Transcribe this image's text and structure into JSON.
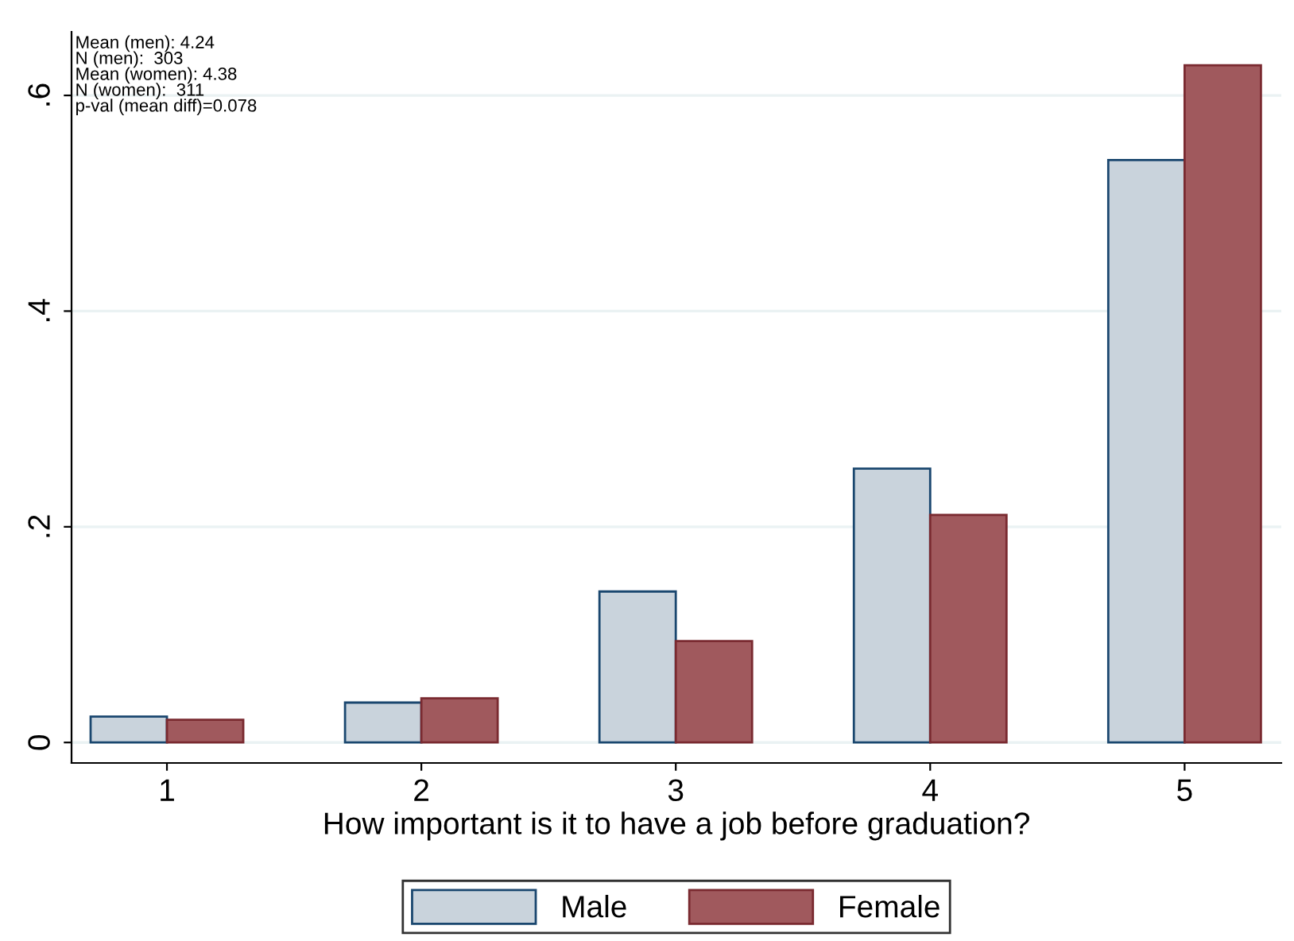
{
  "chart_data": {
    "type": "bar",
    "xlabel": "How important is it to have a job before graduation?",
    "categories": [
      "1",
      "2",
      "3",
      "4",
      "5"
    ],
    "series": [
      {
        "name": "Male",
        "color": "#c9d3dc",
        "values": [
          0.024,
          0.037,
          0.14,
          0.254,
          0.54
        ]
      },
      {
        "name": "Female",
        "color": "#a0595d",
        "values": [
          0.021,
          0.041,
          0.094,
          0.211,
          0.628
        ]
      }
    ],
    "ylim": [
      -0.019,
      0.659
    ],
    "yticks": [
      0,
      {
        "value": 0.2,
        "label": ".2"
      },
      {
        "value": 0.4,
        "label": ".4"
      },
      {
        "value": 0.6,
        "label": ".6"
      }
    ],
    "grid": "y",
    "legend": "bottom",
    "annotations": [
      "Mean (men): 4.24",
      "N (men):  303",
      "Mean (women): 4.38",
      "N (women):  311",
      "p-val (mean diff)=0.078"
    ]
  }
}
